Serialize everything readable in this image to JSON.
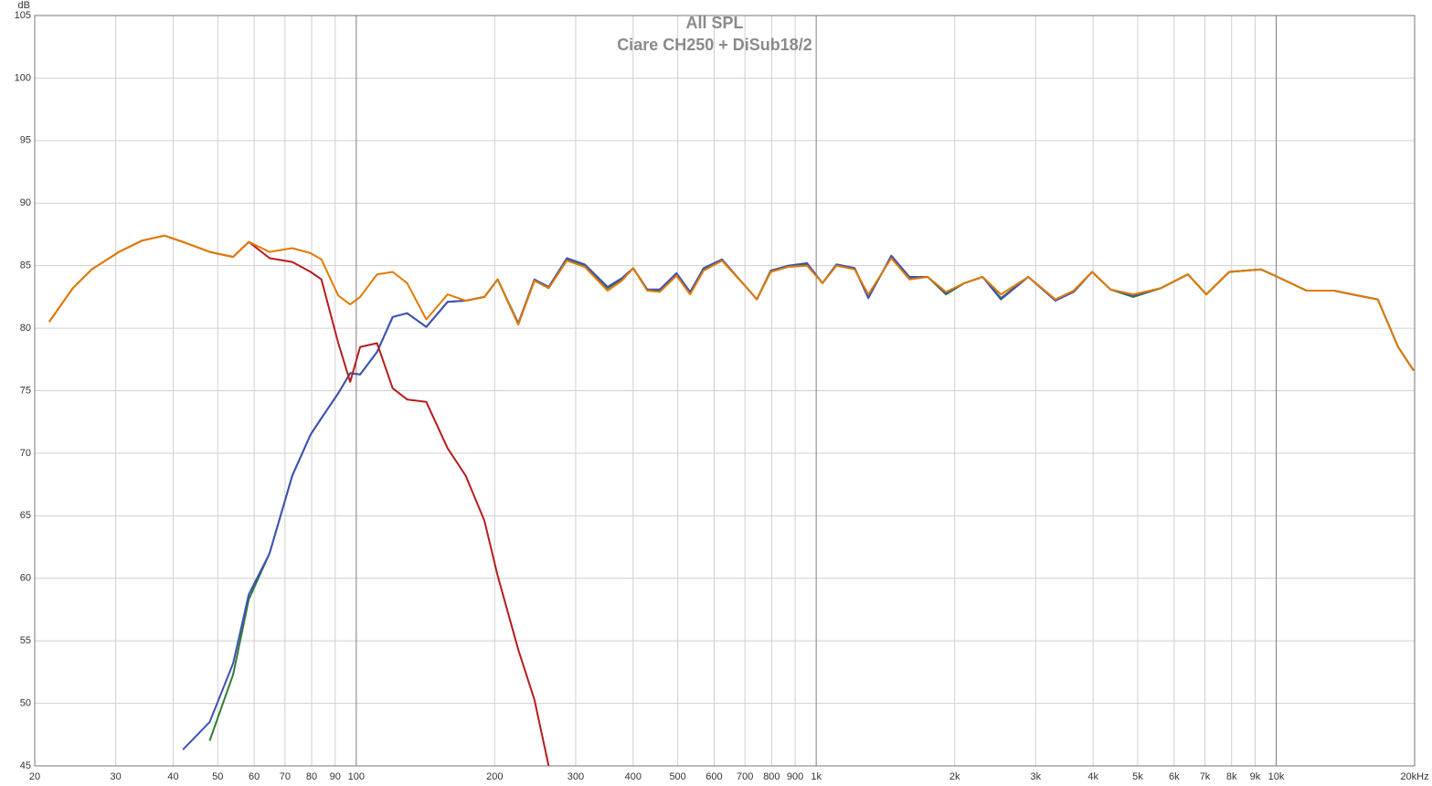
{
  "chart_data": {
    "type": "line",
    "title": "All SPL",
    "subtitle": "Ciare CH250 + DiSub18/2",
    "ylabel": "dB",
    "log_x": true,
    "grid": true,
    "xlim": [
      20,
      20000
    ],
    "ylim": [
      45,
      105
    ],
    "xticks": [
      20,
      30,
      40,
      50,
      60,
      70,
      80,
      90,
      100,
      200,
      300,
      400,
      500,
      600,
      700,
      800,
      900,
      {
        "value": 1000,
        "label": "1k"
      },
      {
        "value": 2000,
        "label": "2k"
      },
      {
        "value": 3000,
        "label": "3k"
      },
      {
        "value": 4000,
        "label": "4k"
      },
      {
        "value": 5000,
        "label": "5k"
      },
      {
        "value": 6000,
        "label": "6k"
      },
      {
        "value": 7000,
        "label": "7k"
      },
      {
        "value": 8000,
        "label": "8k"
      },
      {
        "value": 9000,
        "label": "9k"
      },
      {
        "value": 10000,
        "label": "10k"
      },
      {
        "value": 20000,
        "label": "20kHz"
      }
    ],
    "yticks": [
      45,
      50,
      55,
      60,
      65,
      70,
      75,
      80,
      85,
      90,
      95,
      100,
      105
    ],
    "x": [
      21.5,
      24.2,
      26.6,
      30.5,
      34.2,
      38.3,
      42,
      48,
      54,
      58.4,
      64.8,
      72.6,
      79.6,
      84,
      91.4,
      97,
      102,
      111,
      120,
      129,
      142,
      158,
      173,
      190,
      203,
      225,
      244,
      262,
      287,
      314,
      352,
      378,
      400,
      429,
      457,
      497,
      532,
      569,
      624,
      700,
      743,
      796,
      869,
      955,
      1032,
      1107,
      1212,
      1298,
      1456,
      1595,
      1748,
      1915,
      2099,
      2301,
      2521,
      2891,
      3311,
      3630,
      3981,
      4361,
      4887,
      5610,
      6430,
      7047,
      7907,
      9270,
      10070,
      11640,
      13360,
      14630,
      16630,
      18410,
      19910
    ],
    "series": [
      {
        "color": "#2e7d32",
        "values": [
          null,
          null,
          null,
          null,
          null,
          null,
          null,
          47.0,
          52.3,
          58.3,
          62.0,
          68.2,
          71.5,
          72.8,
          74.8,
          76.4,
          76.3,
          78.1,
          80.9,
          81.2,
          80.1,
          82.1,
          82.2,
          82.5,
          83.9,
          80.3,
          83.8,
          83.2,
          85.5,
          85.0,
          83.2,
          83.9,
          84.8,
          83.1,
          83.0,
          84.3,
          82.8,
          84.7,
          85.4,
          83.4,
          82.3,
          84.5,
          85.0,
          85.1,
          83.6,
          85.1,
          84.8,
          82.5,
          85.7,
          84.0,
          84.1,
          82.7,
          83.6,
          84.1,
          82.4,
          84.1,
          82.3,
          83.0,
          84.5,
          83.1,
          82.5,
          83.2,
          84.3,
          82.7,
          84.5,
          84.7,
          84.1,
          83.0,
          83.0,
          82.7,
          82.3,
          78.5,
          76.6
        ]
      },
      {
        "color": "#3f51b5",
        "values": [
          null,
          null,
          null,
          null,
          null,
          null,
          46.3,
          48.5,
          53.2,
          58.7,
          62.0,
          68.2,
          71.5,
          72.8,
          74.8,
          76.4,
          76.3,
          78.1,
          80.9,
          81.2,
          80.1,
          82.1,
          82.2,
          82.5,
          83.9,
          80.4,
          83.9,
          83.3,
          85.6,
          85.1,
          83.3,
          84.0,
          84.8,
          83.1,
          83.1,
          84.4,
          82.9,
          84.8,
          85.5,
          83.4,
          82.3,
          84.6,
          85.0,
          85.2,
          83.6,
          85.1,
          84.8,
          82.4,
          85.8,
          84.1,
          84.1,
          82.8,
          83.6,
          84.1,
          82.3,
          84.1,
          82.2,
          82.9,
          84.5,
          83.1,
          82.6,
          83.2,
          84.3,
          82.7,
          84.5,
          84.7,
          84.1,
          83.0,
          83.0,
          82.7,
          82.3,
          78.5,
          76.6
        ]
      },
      {
        "color": "#b71c1c",
        "values": [
          80.5,
          83.2,
          84.7,
          86.1,
          87.0,
          87.4,
          86.9,
          86.1,
          85.7,
          86.9,
          85.6,
          85.3,
          84.5,
          83.9,
          78.8,
          75.7,
          78.5,
          78.8,
          75.2,
          74.3,
          74.1,
          70.4,
          68.2,
          64.6,
          60.2,
          54.3,
          50.3,
          45.0,
          null,
          null,
          null,
          null,
          null,
          null,
          null,
          null,
          null,
          null,
          null,
          null,
          null,
          null,
          null,
          null,
          null,
          null,
          null,
          null,
          null,
          null,
          null,
          null,
          null,
          null,
          null,
          null,
          null,
          null,
          null,
          null,
          null,
          null,
          null,
          null,
          null,
          null,
          null,
          null,
          null,
          null,
          null,
          null,
          null
        ]
      },
      {
        "color": "#e07b00",
        "values": [
          80.5,
          83.2,
          84.7,
          86.1,
          87.0,
          87.4,
          86.9,
          86.1,
          85.7,
          86.9,
          86.1,
          86.4,
          86.0,
          85.5,
          82.6,
          81.9,
          82.5,
          84.3,
          84.5,
          83.6,
          80.7,
          82.7,
          82.2,
          82.5,
          83.9,
          80.3,
          83.8,
          83.2,
          85.4,
          84.9,
          83.0,
          83.8,
          84.8,
          83.0,
          82.9,
          84.2,
          82.7,
          84.6,
          85.4,
          83.4,
          82.3,
          84.5,
          84.9,
          85.0,
          83.6,
          85.0,
          84.7,
          82.7,
          85.6,
          83.9,
          84.1,
          82.9,
          83.6,
          84.1,
          82.7,
          84.1,
          82.3,
          83.0,
          84.5,
          83.1,
          82.7,
          83.2,
          84.3,
          82.7,
          84.5,
          84.7,
          84.1,
          83.0,
          83.0,
          82.7,
          82.3,
          78.5,
          76.6
        ]
      }
    ]
  }
}
